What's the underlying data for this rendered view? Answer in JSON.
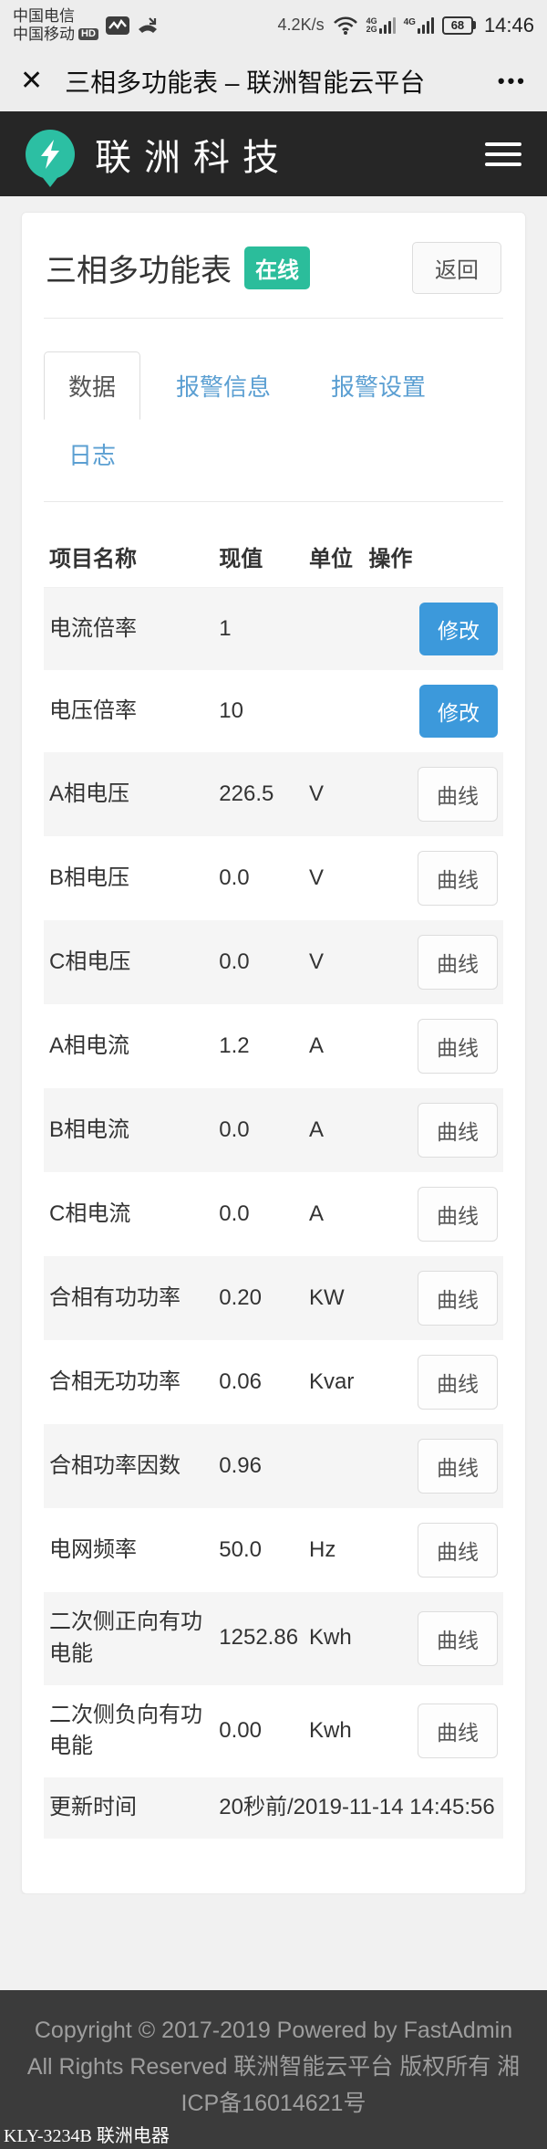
{
  "status_bar": {
    "carrier1": "中国电信",
    "carrier2": "中国移动",
    "hd_badge": "HD",
    "net_speed": "4.2K/s",
    "sim1_label_top": "4G",
    "sim1_label_bottom": "2G",
    "sim2_label": "4G",
    "battery_percent": "68",
    "time": "14:46"
  },
  "browser_bar": {
    "close_icon": "✕",
    "title": "三相多功能表 – 联洲智能云平台",
    "more_icon": "•••"
  },
  "app_header": {
    "brand": "联洲科技"
  },
  "page": {
    "title": "三相多功能表",
    "status_badge": "在线",
    "back_button": "返回",
    "tabs": [
      {
        "id": "data",
        "label": "数据",
        "active": true
      },
      {
        "id": "alarm-info",
        "label": "报警信息",
        "active": false
      },
      {
        "id": "alarm-settings",
        "label": "报警设置",
        "active": false
      },
      {
        "id": "logs",
        "label": "日志",
        "active": false
      }
    ],
    "table": {
      "headers": [
        "项目名称",
        "现值",
        "单位",
        "操作"
      ],
      "rows": [
        {
          "name": "电流倍率",
          "value": "1",
          "unit": "",
          "action": "修改",
          "action_type": "primary"
        },
        {
          "name": "电压倍率",
          "value": "10",
          "unit": "",
          "action": "修改",
          "action_type": "primary"
        },
        {
          "name": "A相电压",
          "value": "226.5",
          "unit": "V",
          "action": "曲线",
          "action_type": "default"
        },
        {
          "name": "B相电压",
          "value": "0.0",
          "unit": "V",
          "action": "曲线",
          "action_type": "default"
        },
        {
          "name": "C相电压",
          "value": "0.0",
          "unit": "V",
          "action": "曲线",
          "action_type": "default"
        },
        {
          "name": "A相电流",
          "value": "1.2",
          "unit": "A",
          "action": "曲线",
          "action_type": "default"
        },
        {
          "name": "B相电流",
          "value": "0.0",
          "unit": "A",
          "action": "曲线",
          "action_type": "default"
        },
        {
          "name": "C相电流",
          "value": "0.0",
          "unit": "A",
          "action": "曲线",
          "action_type": "default"
        },
        {
          "name": "合相有功功率",
          "value": "0.20",
          "unit": "KW",
          "action": "曲线",
          "action_type": "default"
        },
        {
          "name": "合相无功功率",
          "value": "0.06",
          "unit": "Kvar",
          "action": "曲线",
          "action_type": "default"
        },
        {
          "name": "合相功率因数",
          "value": "0.96",
          "unit": "",
          "action": "曲线",
          "action_type": "default"
        },
        {
          "name": "电网频率",
          "value": "50.0",
          "unit": "Hz",
          "action": "曲线",
          "action_type": "default"
        },
        {
          "name": "二次侧正向有功电能",
          "value": "1252.86",
          "unit": "Kwh",
          "action": "曲线",
          "action_type": "default"
        },
        {
          "name": "二次侧负向有功电能",
          "value": "0.00",
          "unit": "Kwh",
          "action": "曲线",
          "action_type": "default"
        },
        {
          "name": "更新时间",
          "value": "20秒前/2019-11-14 14:45:56",
          "unit": "",
          "action": "",
          "action_type": "none"
        }
      ]
    }
  },
  "footer": {
    "copyright": "Copyright © 2017-2019 Powered by FastAdmin All Rights Reserved 联洲智能云平台 版权所有 湘ICP备16014621号"
  },
  "watermark": "KLY-3234B 联洲电器",
  "colors": {
    "accent_green": "#2bbd9b",
    "accent_blue": "#3c99db",
    "tab_link_blue": "#5b9fd2",
    "app_header_bg": "#262626",
    "footer_bg": "#3b3b3b",
    "stripe_gray": "#f5f5f5"
  }
}
